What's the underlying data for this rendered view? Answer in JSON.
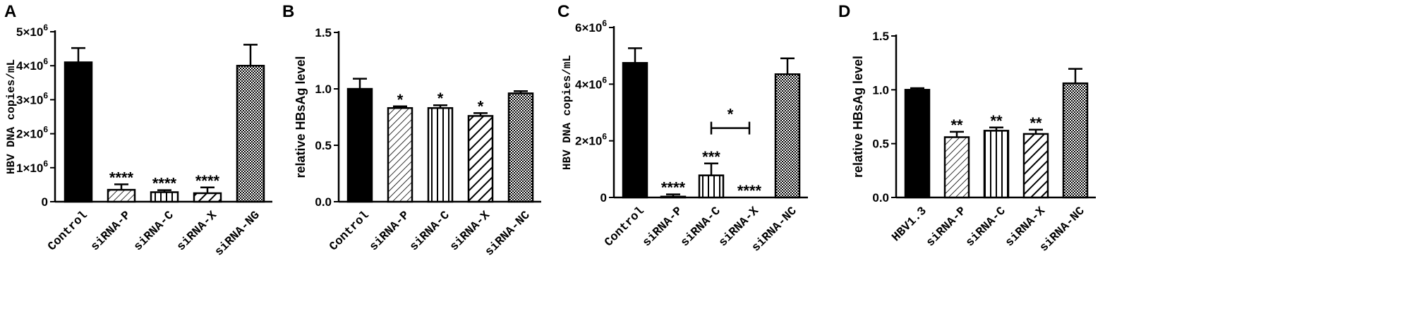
{
  "colors": {
    "ink": "#000000",
    "background": "#ffffff"
  },
  "chart_data": [
    {
      "panel": "A",
      "type": "bar",
      "ylabel": "HBV DNA copies/mL",
      "ylim": [
        0,
        5000000
      ],
      "yticks": [
        {
          "value": 0,
          "mant": "0",
          "exp": ""
        },
        {
          "value": 1000000,
          "mant": "1×10",
          "exp": "6"
        },
        {
          "value": 2000000,
          "mant": "2×10",
          "exp": "6"
        },
        {
          "value": 3000000,
          "mant": "3×10",
          "exp": "6"
        },
        {
          "value": 4000000,
          "mant": "4×10",
          "exp": "6"
        },
        {
          "value": 5000000,
          "mant": "5×10",
          "exp": "6"
        }
      ],
      "categories": [
        "Control",
        "siRNA-P",
        "siRNA-C",
        "siRNA-X",
        "siRNA-NG"
      ],
      "values": [
        4100000,
        350000,
        280000,
        250000,
        4000000
      ],
      "errors": [
        420000,
        160000,
        60000,
        170000,
        620000
      ],
      "patterns": [
        "solid",
        "diag-thin",
        "vertical",
        "diag-thick",
        "checker"
      ],
      "significance": [
        "",
        "****",
        "****",
        "****",
        ""
      ],
      "brackets": []
    },
    {
      "panel": "B",
      "type": "bar",
      "ylabel": "relative HBsAg level",
      "ylim": [
        0,
        1.5
      ],
      "yticks": [
        {
          "value": 0,
          "mant": "0.0",
          "exp": ""
        },
        {
          "value": 0.5,
          "mant": "0.5",
          "exp": ""
        },
        {
          "value": 1.0,
          "mant": "1.0",
          "exp": ""
        },
        {
          "value": 1.5,
          "mant": "1.5",
          "exp": ""
        }
      ],
      "categories": [
        "Control",
        "siRNA-P",
        "siRNA-C",
        "siRNA-X",
        "siRNA-NC"
      ],
      "values": [
        1.0,
        0.83,
        0.83,
        0.76,
        0.96
      ],
      "errors": [
        0.09,
        0.015,
        0.025,
        0.025,
        0.02
      ],
      "patterns": [
        "solid",
        "diag-thin",
        "vertical",
        "diag-thick",
        "checker"
      ],
      "significance": [
        "",
        "*",
        "*",
        "*",
        ""
      ],
      "brackets": []
    },
    {
      "panel": "C",
      "type": "bar",
      "ylabel": "HBV DNA copies/mL",
      "ylim": [
        0,
        6000000
      ],
      "yticks": [
        {
          "value": 0,
          "mant": "0",
          "exp": ""
        },
        {
          "value": 2000000,
          "mant": "2×10",
          "exp": "6"
        },
        {
          "value": 4000000,
          "mant": "4×10",
          "exp": "6"
        },
        {
          "value": 6000000,
          "mant": "6×10",
          "exp": "6"
        }
      ],
      "categories": [
        "Control",
        "siRNA-P",
        "siRNA-C",
        "siRNA-X",
        "siRNA-NC"
      ],
      "values": [
        4750000,
        30000,
        780000,
        0,
        4350000
      ],
      "errors": [
        520000,
        80000,
        420000,
        0,
        560000
      ],
      "patterns": [
        "solid",
        "diag-thin",
        "vertical",
        "diag-thick",
        "checker"
      ],
      "significance": [
        "",
        "****",
        "***",
        "****",
        ""
      ],
      "brackets": [
        {
          "from": 2,
          "to": 3,
          "y": 2450000,
          "label": "*"
        }
      ]
    },
    {
      "panel": "D",
      "type": "bar",
      "ylabel": "relative HBsAg level",
      "ylim": [
        0,
        1.5
      ],
      "yticks": [
        {
          "value": 0,
          "mant": "0.0",
          "exp": ""
        },
        {
          "value": 0.5,
          "mant": "0.5",
          "exp": ""
        },
        {
          "value": 1.0,
          "mant": "1.0",
          "exp": ""
        },
        {
          "value": 1.5,
          "mant": "1.5",
          "exp": ""
        }
      ],
      "categories": [
        "HBV1.3",
        "siRNA-P",
        "siRNA-C",
        "siRNA-X",
        "siRNA-NC"
      ],
      "values": [
        1.0,
        0.56,
        0.62,
        0.59,
        1.06
      ],
      "errors": [
        0.015,
        0.05,
        0.03,
        0.04,
        0.135
      ],
      "patterns": [
        "solid",
        "diag-thin",
        "vertical",
        "diag-thick",
        "checker"
      ],
      "significance": [
        "",
        "**",
        "**",
        "**",
        ""
      ],
      "brackets": []
    }
  ]
}
